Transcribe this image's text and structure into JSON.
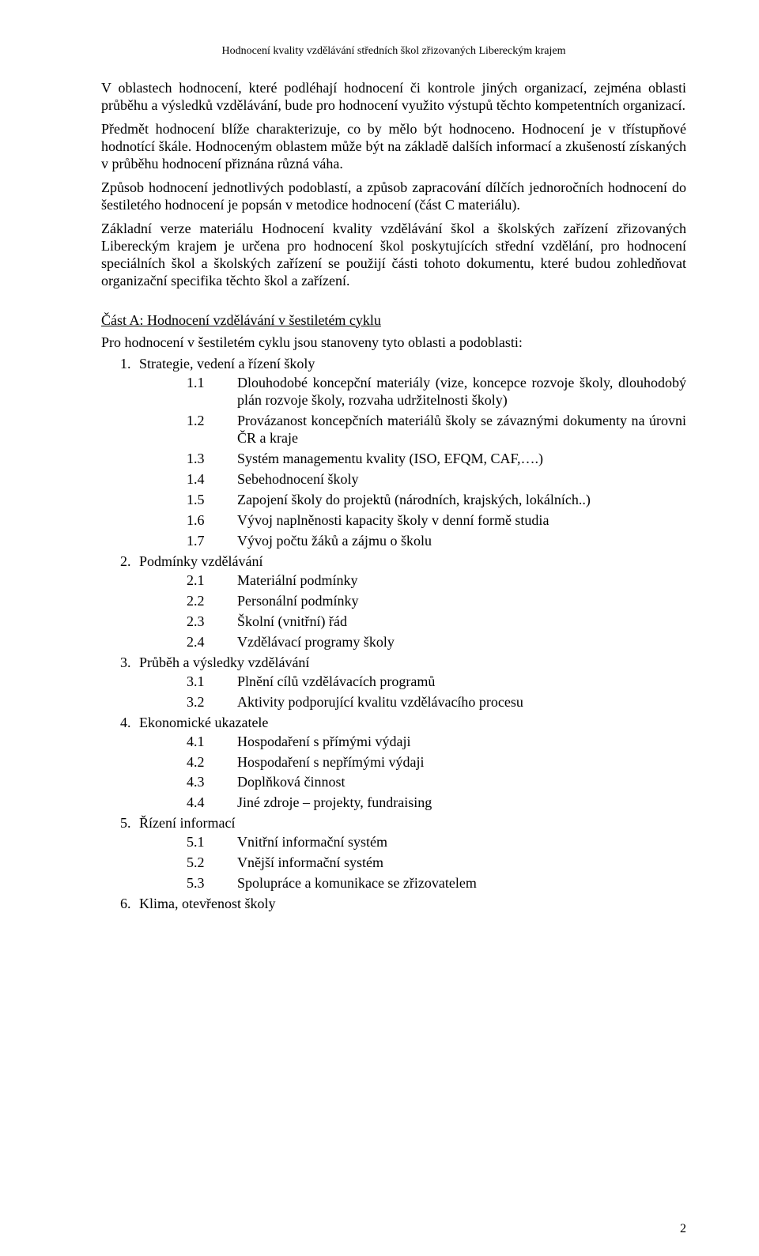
{
  "header": "Hodnocení kvality vzdělávání středních škol zřizovaných Libereckým krajem",
  "paras": [
    "V oblastech hodnocení, které podléhají hodnocení či kontrole jiných organizací, zejména oblasti průběhu a výsledků vzdělávání, bude pro hodnocení využito výstupů těchto kompetentních organizací.",
    "Předmět hodnocení blíže charakterizuje, co by mělo být hodnoceno. Hodnocení je v třístupňové hodnotící škále. Hodnoceným oblastem může být na základě dalších informací a zkušeností získaných v průběhu hodnocení přiznána různá váha.",
    "Způsob hodnocení jednotlivých podoblastí, a způsob zapracování dílčích jednoročních hodnocení do šestiletého hodnocení je popsán v metodice hodnocení (část C materiálu).",
    "Základní verze materiálu Hodnocení kvality vzdělávání škol a školských zařízení zřizovaných Libereckým krajem je určena pro hodnocení škol poskytujících střední vzdělání, pro hodnocení speciálních škol a školských zařízení se použijí části tohoto dokumentu, které budou zohledňovat organizační specifika těchto škol a zařízení."
  ],
  "sectionA": {
    "title": "Část A: Hodnocení vzdělávání v šestiletém cyklu",
    "intro": "Pro hodnocení v šestiletém cyklu jsou stanoveny tyto oblasti a podoblasti:"
  },
  "list": [
    {
      "n": "1.",
      "label": "Strategie, vedení a řízení školy",
      "sub": [
        {
          "n": "1.1",
          "t": "Dlouhodobé koncepční materiály (vize, koncepce rozvoje školy, dlouhodobý plán rozvoje školy, rozvaha udržitelnosti školy)",
          "just": true
        },
        {
          "n": "1.2",
          "t": "Provázanost koncepčních materiálů školy se závaznými dokumenty na úrovni ČR a kraje",
          "just": true
        },
        {
          "n": "1.3",
          "t": "Systém managementu kvality (ISO, EFQM, CAF,….)"
        },
        {
          "n": "1.4",
          "t": "Sebehodnocení školy"
        },
        {
          "n": "1.5",
          "t": "Zapojení školy do projektů (národních, krajských, lokálních..)"
        },
        {
          "n": "1.6",
          "t": "Vývoj naplněnosti kapacity školy v denní formě studia"
        },
        {
          "n": "1.7",
          "t": "Vývoj počtu žáků a zájmu o školu"
        }
      ]
    },
    {
      "n": "2.",
      "label": "Podmínky vzdělávání",
      "sub": [
        {
          "n": "2.1",
          "t": "Materiální podmínky"
        },
        {
          "n": "2.2",
          "t": "Personální podmínky"
        },
        {
          "n": "2.3",
          "t": "Školní (vnitřní) řád"
        },
        {
          "n": "2.4",
          "t": "Vzdělávací programy školy"
        }
      ]
    },
    {
      "n": "3.",
      "label": "Průběh a výsledky vzdělávání",
      "sub": [
        {
          "n": "3.1",
          "t": "Plnění cílů vzdělávacích programů"
        },
        {
          "n": "3.2",
          "t": "Aktivity podporující kvalitu vzdělávacího procesu"
        }
      ]
    },
    {
      "n": "4.",
      "label": "Ekonomické ukazatele",
      "sub": [
        {
          "n": "4.1",
          "t": "Hospodaření s přímými výdaji"
        },
        {
          "n": "4.2",
          "t": "Hospodaření s nepřímými výdaji"
        },
        {
          "n": "4.3",
          "t": "Doplňková činnost"
        },
        {
          "n": "4.4",
          "t": "Jiné zdroje – projekty, fundraising"
        }
      ]
    },
    {
      "n": "5.",
      "label": "Řízení informací",
      "sub": [
        {
          "n": "5.1",
          "t": "Vnitřní informační systém"
        },
        {
          "n": "5.2",
          "t": "Vnější informační systém"
        },
        {
          "n": "5.3",
          "t": "Spolupráce a komunikace se zřizovatelem"
        }
      ]
    },
    {
      "n": "6.",
      "label": "Klima, otevřenost školy",
      "sub": []
    }
  ],
  "pageNumber": "2"
}
